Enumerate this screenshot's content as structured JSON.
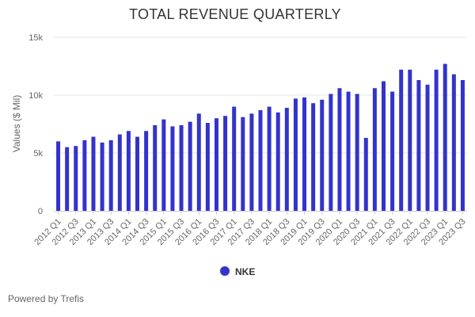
{
  "chart_data": {
    "type": "bar",
    "title": "TOTAL REVENUE QUARTERLY",
    "xlabel": "",
    "ylabel": "Values ($ Mil)",
    "ylim": [
      0,
      15000
    ],
    "yticks": [
      {
        "value": 0,
        "label": "0"
      },
      {
        "value": 5000,
        "label": "5k"
      },
      {
        "value": 10000,
        "label": "10k"
      },
      {
        "value": 15000,
        "label": "15k"
      }
    ],
    "grid": true,
    "legend_position": "bottom",
    "bar_color": "#3333cc",
    "categories": [
      "2012 Q1",
      "2012 Q2",
      "2012 Q3",
      "2012 Q4",
      "2013 Q1",
      "2013 Q2",
      "2013 Q3",
      "2013 Q4",
      "2014 Q1",
      "2014 Q2",
      "2014 Q3",
      "2014 Q4",
      "2015 Q1",
      "2015 Q2",
      "2015 Q3",
      "2015 Q4",
      "2016 Q1",
      "2016 Q2",
      "2016 Q3",
      "2016 Q4",
      "2017 Q1",
      "2017 Q2",
      "2017 Q3",
      "2017 Q4",
      "2018 Q1",
      "2018 Q2",
      "2018 Q3",
      "2018 Q4",
      "2019 Q1",
      "2019 Q2",
      "2019 Q3",
      "2019 Q4",
      "2020 Q1",
      "2020 Q2",
      "2020 Q3",
      "2020 Q4",
      "2021 Q1",
      "2021 Q2",
      "2021 Q3",
      "2021 Q4",
      "2022 Q1",
      "2022 Q2",
      "2022 Q3",
      "2022 Q4",
      "2023 Q1",
      "2023 Q2",
      "2023 Q3"
    ],
    "tick_labels_shown": [
      "2012 Q1",
      "2012 Q3",
      "2013 Q1",
      "2013 Q3",
      "2014 Q1",
      "2014 Q3",
      "2015 Q1",
      "2015 Q3",
      "2016 Q1",
      "2016 Q3",
      "2017 Q1",
      "2017 Q3",
      "2018 Q1",
      "2018 Q3",
      "2019 Q1",
      "2019 Q3",
      "2020 Q1",
      "2020 Q3",
      "2021 Q1",
      "2021 Q3",
      "2022 Q1",
      "2022 Q3",
      "2023 Q1",
      "2023 Q3"
    ],
    "series": [
      {
        "name": "NKE",
        "values": [
          6000,
          5500,
          5600,
          6100,
          6400,
          5900,
          6100,
          6600,
          6900,
          6400,
          6900,
          7400,
          7900,
          7300,
          7400,
          7700,
          8400,
          7600,
          8000,
          8200,
          9000,
          8100,
          8400,
          8700,
          9000,
          8500,
          8900,
          9700,
          9800,
          9300,
          9600,
          10100,
          10600,
          10300,
          10100,
          6300,
          10600,
          11200,
          10300,
          12200,
          12200,
          11300,
          10900,
          12200,
          12700,
          11800,
          11300
        ]
      }
    ]
  },
  "footer": {
    "credit": "Powered by Trefis"
  }
}
